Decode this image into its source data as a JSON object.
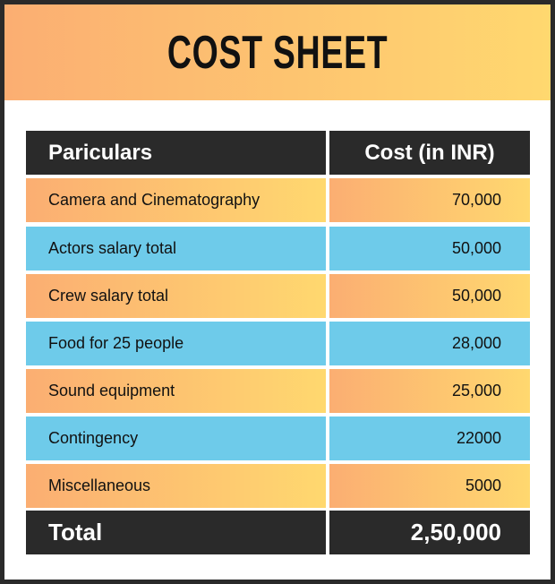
{
  "title": "COST SHEET",
  "table": {
    "headers": [
      "Pariculars",
      "Cost (in INR)"
    ],
    "rows": [
      {
        "item": "Camera and Cinematography",
        "cost": "70,000"
      },
      {
        "item": "Actors salary total",
        "cost": "50,000"
      },
      {
        "item": "Crew salary total",
        "cost": "50,000"
      },
      {
        "item": "Food for 25 people",
        "cost": "28,000"
      },
      {
        "item": "Sound equipment",
        "cost": "25,000"
      },
      {
        "item": "Contingency",
        "cost": "22000"
      },
      {
        "item": "Miscellaneous",
        "cost": "5000"
      }
    ],
    "total": {
      "label": "Total",
      "value": "2,50,000"
    }
  },
  "colors": {
    "orange_start": "#fbae72",
    "orange_end": "#ffd86f",
    "blue": "#6ecbea",
    "dark": "#2a2a2a"
  }
}
